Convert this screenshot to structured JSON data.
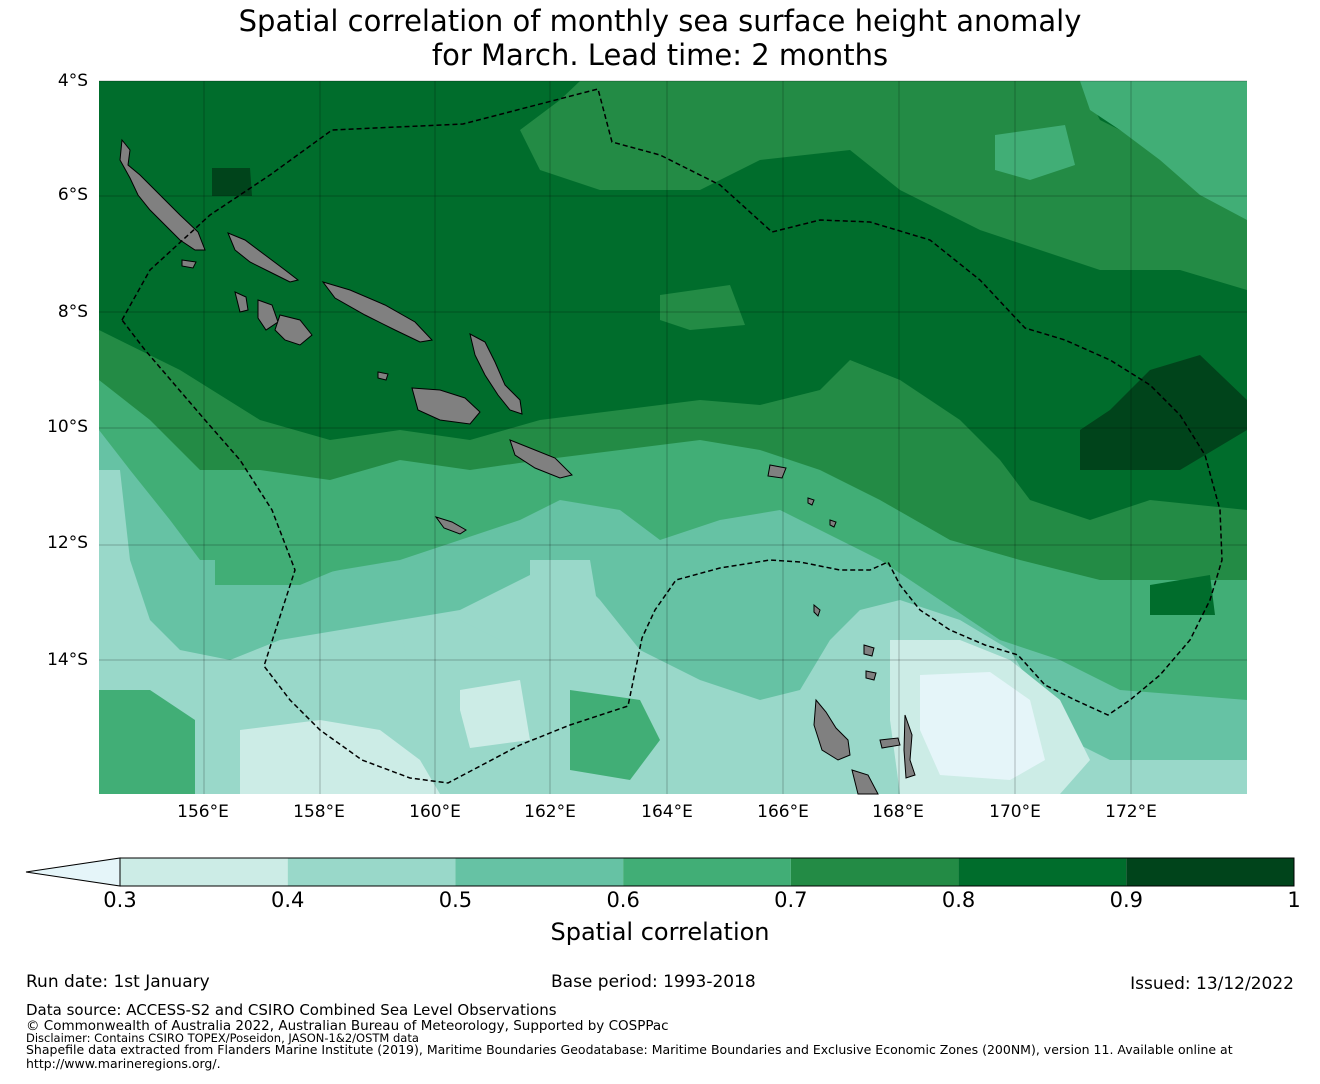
{
  "title_line1": "Spatial correlation of monthly sea surface height anomaly",
  "title_line2": "for March. Lead time: 2 months",
  "map": {
    "lon_ticks": [
      "156°E",
      "158°E",
      "160°E",
      "162°E",
      "164°E",
      "166°E",
      "168°E",
      "170°E",
      "172°E"
    ],
    "lat_ticks": [
      "4°S",
      "6°S",
      "8°S",
      "10°S",
      "12°S",
      "14°S"
    ],
    "lon_range": [
      154.2,
      174.0
    ],
    "lat_range": [
      -16.3,
      -4.0
    ],
    "land_color": "#808080",
    "boundary_style": "dashed"
  },
  "colorbar": {
    "levels": [
      "0.3",
      "0.4",
      "0.5",
      "0.6",
      "0.7",
      "0.8",
      "0.9",
      "1"
    ],
    "colors": [
      "#ccece6",
      "#99d8c9",
      "#66c2a4",
      "#41ae76",
      "#238b45",
      "#006d2c",
      "#00441b"
    ],
    "under_color": "#e5f5f9",
    "label": "Spatial correlation"
  },
  "footer": {
    "run_date": "Run date: 1st January",
    "base_period": "Base period: 1993-2018",
    "issued": "Issued: 13/12/2022",
    "data_source": "Data source: ACCESS-S2 and CSIRO Combined Sea Level Observations",
    "copyright": "© Commonwealth of Australia 2022, Australian Bureau of Meteorology, Supported by COSPPac",
    "disclaimer": "Disclaimer: Contains CSIRO TOPEX/Poseidon, JASON-1&2/OSTM data",
    "shapefile": "Shapefile data extracted from Flanders Marine Institute (2019), Maritime Boundaries Geodatabase: Maritime Boundaries and Exclusive Economic Zones (200NM), version 11. Available online at",
    "url": "http://www.marineregions.org/."
  }
}
